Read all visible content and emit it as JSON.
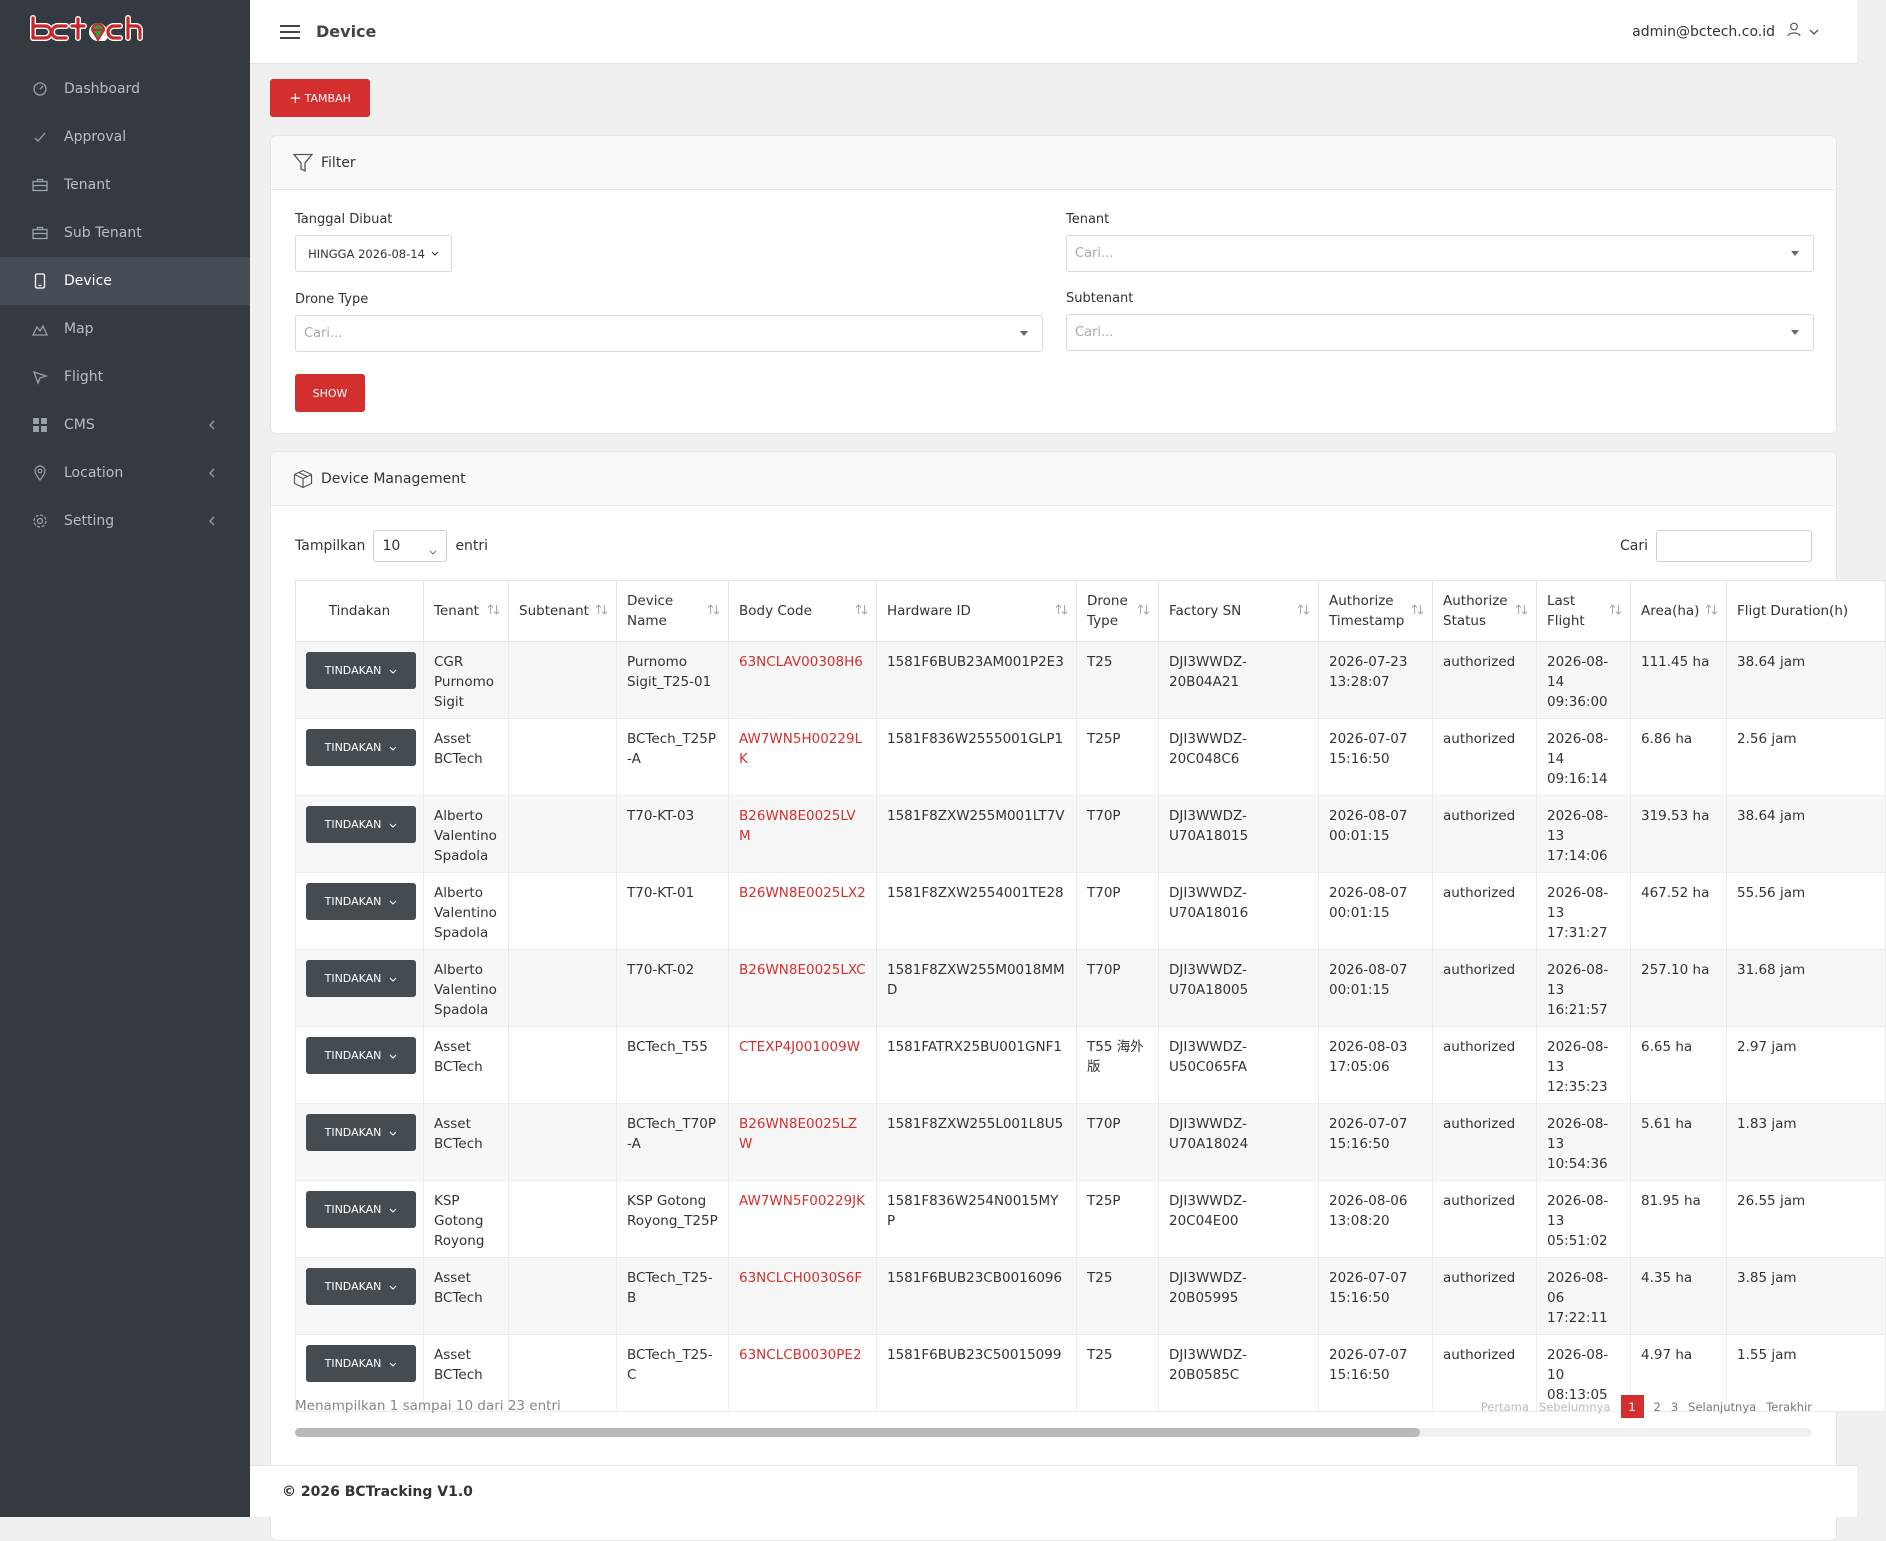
{
  "brand": {
    "logo_text": "bctech",
    "logo_color": "#c62828",
    "logo_accent": "#2e9d45"
  },
  "sidebar": {
    "items": [
      {
        "label": "Dashboard",
        "icon": "dashboard-icon"
      },
      {
        "label": "Approval",
        "icon": "check-icon"
      },
      {
        "label": "Tenant",
        "icon": "briefcase-icon"
      },
      {
        "label": "Sub Tenant",
        "icon": "briefcase-icon"
      },
      {
        "label": "Device",
        "icon": "device-icon",
        "active": true
      },
      {
        "label": "Map",
        "icon": "map-icon"
      },
      {
        "label": "Flight",
        "icon": "send-icon"
      },
      {
        "label": "CMS",
        "icon": "grid-icon",
        "has_children": true
      },
      {
        "label": "Location",
        "icon": "pin-icon",
        "has_children": true
      },
      {
        "label": "Setting",
        "icon": "gear-icon",
        "has_children": true
      }
    ]
  },
  "header": {
    "title": "Device",
    "user_email": "admin@bctech.co.id"
  },
  "toolbar": {
    "add_label": "TAMBAH"
  },
  "filter": {
    "title": "Filter",
    "date_label": "Tanggal Dibuat",
    "date_value": "HINGGA 2026-08-14",
    "tenant_label": "Tenant",
    "tenant_placeholder": "Cari...",
    "drone_type_label": "Drone Type",
    "drone_type_placeholder": "Cari...",
    "subtenant_label": "Subtenant",
    "subtenant_placeholder": "Cari...",
    "show_label": "SHOW"
  },
  "device_table": {
    "title": "Device Management",
    "show_label": "Tampilkan",
    "page_size": "10",
    "entries_label": "entri",
    "search_label": "Cari",
    "action_label": "TINDAKAN",
    "columns": [
      "Tindakan",
      "Tenant",
      "Subtenant",
      "Device Name",
      "Body Code",
      "Hardware ID",
      "Drone Type",
      "Factory SN",
      "Authorize Timestamp",
      "Authorize Status",
      "Last Flight",
      "Area(ha)",
      "Fligt Duration(h)"
    ],
    "rows": [
      {
        "tenant": "CGR Purnomo Sigit",
        "subtenant": "",
        "device_name": "Purnomo Sigit_T25-01",
        "body_code": "63NCLAV00308H6",
        "hardware_id": "1581F6BUB23AM001P2E3",
        "drone_type": "T25",
        "factory_sn": "DJI3WWDZ-20B04A21",
        "auth_ts": "2026-07-23 13:28:07",
        "auth_status": "authorized",
        "last_flight": "2026-08-14 09:36:00",
        "area": "111.45 ha",
        "duration": "38.64 jam"
      },
      {
        "tenant": "Asset BCTech",
        "subtenant": "",
        "device_name": "BCTech_T25P-A",
        "body_code": "AW7WN5H00229LK",
        "hardware_id": "1581F836W2555001GLP1",
        "drone_type": "T25P",
        "factory_sn": "DJI3WWDZ-20C048C6",
        "auth_ts": "2026-07-07 15:16:50",
        "auth_status": "authorized",
        "last_flight": "2026-08-14 09:16:14",
        "area": "6.86 ha",
        "duration": "2.56 jam"
      },
      {
        "tenant": "Alberto Valentino Spadola",
        "subtenant": "",
        "device_name": "T70-KT-03",
        "body_code": "B26WN8E0025LVM",
        "hardware_id": "1581F8ZXW255M001LT7V",
        "drone_type": "T70P",
        "factory_sn": "DJI3WWDZ-U70A18015",
        "auth_ts": "2026-08-07 00:01:15",
        "auth_status": "authorized",
        "last_flight": "2026-08-13 17:14:06",
        "area": "319.53 ha",
        "duration": "38.64 jam"
      },
      {
        "tenant": "Alberto Valentino Spadola",
        "subtenant": "",
        "device_name": "T70-KT-01",
        "body_code": "B26WN8E0025LX2",
        "hardware_id": "1581F8ZXW2554001TE28",
        "drone_type": "T70P",
        "factory_sn": "DJI3WWDZ-U70A18016",
        "auth_ts": "2026-08-07 00:01:15",
        "auth_status": "authorized",
        "last_flight": "2026-08-13 17:31:27",
        "area": "467.52 ha",
        "duration": "55.56 jam"
      },
      {
        "tenant": "Alberto Valentino Spadola",
        "subtenant": "",
        "device_name": "T70-KT-02",
        "body_code": "B26WN8E0025LXC",
        "hardware_id": "1581F8ZXW255M0018MMD",
        "drone_type": "T70P",
        "factory_sn": "DJI3WWDZ-U70A18005",
        "auth_ts": "2026-08-07 00:01:15",
        "auth_status": "authorized",
        "last_flight": "2026-08-13 16:21:57",
        "area": "257.10 ha",
        "duration": "31.68 jam"
      },
      {
        "tenant": "Asset BCTech",
        "subtenant": "",
        "device_name": "BCTech_T55",
        "body_code": "CTEXP4J001009W",
        "hardware_id": "1581FATRX25BU001GNF1",
        "drone_type": "T55 海外版",
        "factory_sn": "DJI3WWDZ-U50C065FA",
        "auth_ts": "2026-08-03 17:05:06",
        "auth_status": "authorized",
        "last_flight": "2026-08-13 12:35:23",
        "area": "6.65 ha",
        "duration": "2.97 jam"
      },
      {
        "tenant": "Asset BCTech",
        "subtenant": "",
        "device_name": "BCTech_T70P-A",
        "body_code": "B26WN8E0025LZW",
        "hardware_id": "1581F8ZXW255L001L8U5",
        "drone_type": "T70P",
        "factory_sn": "DJI3WWDZ-U70A18024",
        "auth_ts": "2026-07-07 15:16:50",
        "auth_status": "authorized",
        "last_flight": "2026-08-13 10:54:36",
        "area": "5.61 ha",
        "duration": "1.83 jam"
      },
      {
        "tenant": "KSP Gotong Royong",
        "subtenant": "",
        "device_name": "KSP Gotong Royong_T25P",
        "body_code": "AW7WN5F00229JK",
        "hardware_id": "1581F836W254N0015MYP",
        "drone_type": "T25P",
        "factory_sn": "DJI3WWDZ-20C04E00",
        "auth_ts": "2026-08-06 13:08:20",
        "auth_status": "authorized",
        "last_flight": "2026-08-13 05:51:02",
        "area": "81.95 ha",
        "duration": "26.55 jam"
      },
      {
        "tenant": "Asset BCTech",
        "subtenant": "",
        "device_name": "BCTech_T25-B",
        "body_code": "63NCLCH0030S6F",
        "hardware_id": "1581F6BUB23CB0016096",
        "drone_type": "T25",
        "factory_sn": "DJI3WWDZ-20B05995",
        "auth_ts": "2026-07-07 15:16:50",
        "auth_status": "authorized",
        "last_flight": "2026-08-06 17:22:11",
        "area": "4.35 ha",
        "duration": "3.85 jam"
      },
      {
        "tenant": "Asset BCTech",
        "subtenant": "",
        "device_name": "BCTech_T25-C",
        "body_code": "63NCLCB0030PE2",
        "hardware_id": "1581F6BUB23C50015099",
        "drone_type": "T25",
        "factory_sn": "DJI3WWDZ-20B0585C",
        "auth_ts": "2026-07-07 15:16:50",
        "auth_status": "authorized",
        "last_flight": "2026-08-10 08:13:05",
        "area": "4.97 ha",
        "duration": "1.55 jam"
      }
    ],
    "info": "Menampilkan 1 sampai 10 dari 23 entri",
    "pagination": {
      "first": "Pertama",
      "prev": "Sebelumnya",
      "pages": [
        "1",
        "2",
        "3"
      ],
      "current": "1",
      "next": "Selanjutnya",
      "last": "Terakhir"
    }
  },
  "footer": {
    "text": "© 2026 BCTracking V1.0"
  }
}
